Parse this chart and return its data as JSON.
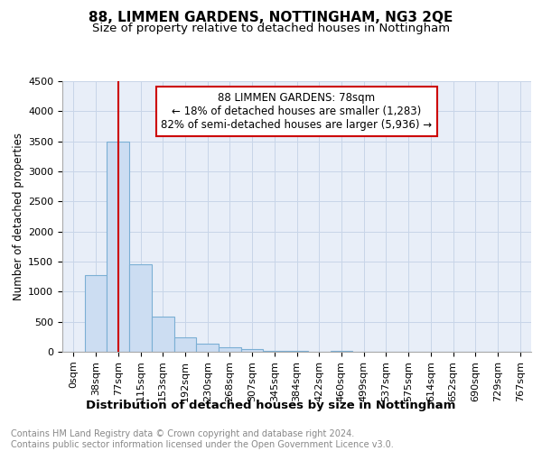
{
  "title": "88, LIMMEN GARDENS, NOTTINGHAM, NG3 2QE",
  "subtitle": "Size of property relative to detached houses in Nottingham",
  "xlabel": "Distribution of detached houses by size in Nottingham",
  "ylabel": "Number of detached properties",
  "bin_labels": [
    "0sqm",
    "38sqm",
    "77sqm",
    "115sqm",
    "153sqm",
    "192sqm",
    "230sqm",
    "268sqm",
    "307sqm",
    "345sqm",
    "384sqm",
    "422sqm",
    "460sqm",
    "499sqm",
    "537sqm",
    "575sqm",
    "614sqm",
    "652sqm",
    "690sqm",
    "729sqm",
    "767sqm"
  ],
  "bar_values": [
    5,
    1280,
    3500,
    1450,
    580,
    240,
    140,
    75,
    40,
    20,
    10,
    5,
    8,
    0,
    0,
    0,
    0,
    0,
    0,
    0,
    0
  ],
  "bar_color": "#ccddf2",
  "bar_edge_color": "#7bafd4",
  "vline_x_index": 2,
  "vline_color": "#cc0000",
  "annotation_line1": "88 LIMMEN GARDENS: 78sqm",
  "annotation_line2": "← 18% of detached houses are smaller (1,283)",
  "annotation_line3": "82% of semi-detached houses are larger (5,936) →",
  "annotation_box_color": "#cc0000",
  "ylim": [
    0,
    4500
  ],
  "yticks": [
    0,
    500,
    1000,
    1500,
    2000,
    2500,
    3000,
    3500,
    4000,
    4500
  ],
  "footnote": "Contains HM Land Registry data © Crown copyright and database right 2024.\nContains public sector information licensed under the Open Government Licence v3.0.",
  "title_fontsize": 11,
  "subtitle_fontsize": 9.5,
  "xlabel_fontsize": 9.5,
  "ylabel_fontsize": 8.5,
  "tick_fontsize": 8,
  "annotation_fontsize": 8.5,
  "footnote_fontsize": 7,
  "grid_color": "#c8d5e8",
  "background_color": "#e8eef8"
}
